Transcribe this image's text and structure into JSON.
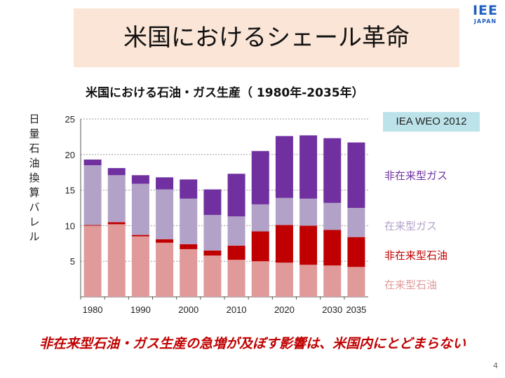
{
  "slide": {
    "title": "米国におけるシェール革命",
    "logo_main": "IEE",
    "logo_sub": "JAPAN",
    "source_badge": "IEA WEO 2012",
    "footer": "非在来型石油・ガス生産の急増が及ぼす影響は、米国内にとどまらない",
    "page_number": "4"
  },
  "chart_data": {
    "type": "bar",
    "stacked": true,
    "title": "米国における石油・ガス生産（ 1980年-2035年）",
    "ylabel_chars": [
      "日",
      "量",
      "石",
      "油",
      "換",
      "算",
      "バ",
      "レ",
      "ル"
    ],
    "ylim": [
      0,
      25
    ],
    "yticks": [
      5,
      10,
      15,
      20,
      25
    ],
    "x_tick_labels": [
      "1980",
      "1990",
      "2000",
      "2010",
      "2020",
      "2030",
      "2035"
    ],
    "categories": [
      "1980",
      "1985",
      "1990",
      "1995",
      "2000",
      "2005",
      "2010",
      "2015",
      "2020",
      "2025",
      "2030",
      "2035"
    ],
    "series": [
      {
        "name": "在来型石油",
        "color": "#e09a9a",
        "values": [
          10.0,
          10.2,
          8.5,
          7.6,
          6.7,
          5.8,
          5.2,
          5.0,
          4.8,
          4.5,
          4.4,
          4.2
        ]
      },
      {
        "name": "非在来型石油",
        "color": "#c00000",
        "values": [
          0.1,
          0.3,
          0.2,
          0.5,
          0.7,
          0.7,
          2.0,
          4.2,
          5.3,
          5.5,
          5.0,
          4.2
        ]
      },
      {
        "name": "在来型ガス",
        "color": "#b3a2c7",
        "values": [
          8.4,
          6.6,
          7.2,
          7.0,
          6.4,
          5.0,
          4.1,
          3.8,
          3.8,
          3.8,
          3.8,
          4.1
        ]
      },
      {
        "name": "非在来型ガス",
        "color": "#7030a0",
        "values": [
          0.8,
          1.0,
          1.2,
          1.7,
          2.7,
          3.6,
          6.0,
          7.5,
          8.7,
          8.9,
          9.1,
          9.2
        ]
      }
    ],
    "legend": [
      {
        "label": "非在来型ガス",
        "color": "#7030a0"
      },
      {
        "label": "在来型ガス",
        "color": "#b3a2c7"
      },
      {
        "label": "非在来型石油",
        "color": "#c00000"
      },
      {
        "label": "在来型石油",
        "color": "#e09a9a"
      }
    ],
    "legend_position": "right",
    "grid": true
  }
}
